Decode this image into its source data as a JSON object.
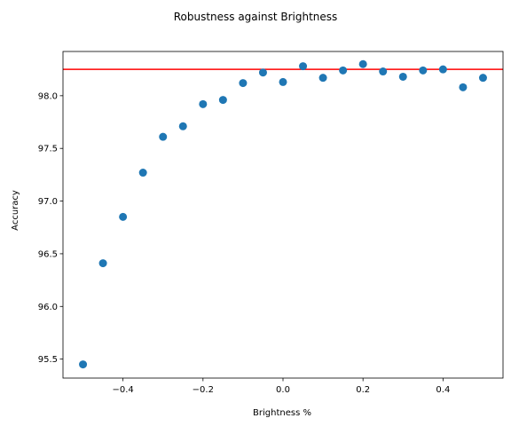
{
  "chart_data": {
    "type": "scatter",
    "title": "Robustness against Brightness",
    "xlabel": "Brightness %",
    "ylabel": "Accuracy",
    "xlim": [
      -0.55,
      0.55
    ],
    "ylim": [
      95.32,
      98.42
    ],
    "x_ticks": [
      -0.4,
      -0.2,
      0.0,
      0.2,
      0.4
    ],
    "x_tick_labels": [
      "−0.4",
      "−0.2",
      "0.0",
      "0.2",
      "0.4"
    ],
    "y_ticks": [
      95.5,
      96.0,
      96.5,
      97.0,
      97.5,
      98.0
    ],
    "y_tick_labels": [
      "95.5",
      "96.0",
      "96.5",
      "97.0",
      "97.5",
      "98.0"
    ],
    "grid": false,
    "series": [
      {
        "color": "#1f77b4",
        "x": [
          -0.5,
          -0.45,
          -0.4,
          -0.35,
          -0.3,
          -0.25,
          -0.2,
          -0.15,
          -0.1,
          -0.05,
          0.0,
          0.05,
          0.1,
          0.15,
          0.2,
          0.25,
          0.3,
          0.35,
          0.4,
          0.45,
          0.5
        ],
        "y": [
          95.45,
          96.41,
          96.85,
          97.27,
          97.61,
          97.71,
          97.92,
          97.96,
          98.12,
          98.22,
          98.13,
          98.28,
          98.17,
          98.24,
          98.3,
          98.23,
          98.18,
          98.24,
          98.25,
          98.08,
          98.17
        ]
      }
    ],
    "reference_line": {
      "orientation": "horizontal",
      "y": 98.25,
      "color": "#ff0000"
    }
  }
}
